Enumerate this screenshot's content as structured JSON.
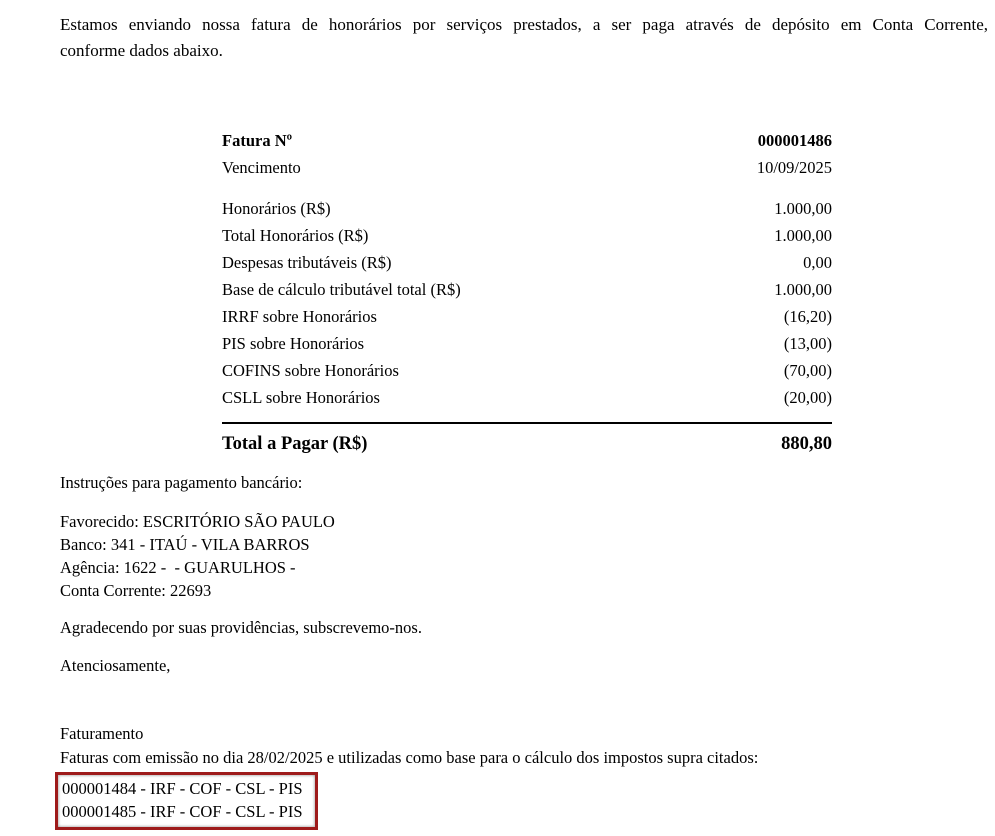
{
  "intro": {
    "line1": "Estamos enviando nossa fatura de honorários por serviços prestados, a ser paga através de depósito em Conta Corrente,",
    "line2": "conforme dados abaixo."
  },
  "invoice": {
    "number_label": "Fatura Nº",
    "number_value": "000001486",
    "due_label": "Vencimento",
    "due_value": "10/09/2025",
    "rows": [
      {
        "label": "Honorários (R$)",
        "value": "1.000,00"
      },
      {
        "label": "Total Honorários (R$)",
        "value": "1.000,00"
      },
      {
        "label": "Despesas tributáveis (R$)",
        "value": "0,00"
      },
      {
        "label": "Base de cálculo tributável total (R$)",
        "value": "1.000,00"
      },
      {
        "label": "IRRF sobre Honorários",
        "value": "(16,20)"
      },
      {
        "label": "PIS sobre Honorários",
        "value": "(13,00)"
      },
      {
        "label": "COFINS sobre Honorários",
        "value": "(70,00)"
      },
      {
        "label": "CSLL sobre Honorários",
        "value": "(20,00)"
      }
    ],
    "total_label": "Total a Pagar (R$)",
    "total_value": "880,80"
  },
  "payment": {
    "title": "Instruções para pagamento bancário:",
    "beneficiary": "Favorecido: ESCRITÓRIO SÃO PAULO",
    "bank": "Banco: 341 - ITAÚ - VILA BARROS",
    "agency": "Agência: 1622 -  - GUARULHOS -",
    "account": "Conta Corrente: 22693"
  },
  "closing": {
    "thanks": "Agradecendo por suas providências, subscrevemo-nos.",
    "regards": "Atenciosamente,"
  },
  "footer": {
    "department": "Faturamento",
    "note": "Faturas com emissão no dia 28/02/2025 e utilizadas como base para o cálculo dos impostos supra citados:",
    "highlighted_invoices": [
      "000001484 - IRF - COF - CSL - PIS",
      "000001485 - IRF - COF - CSL - PIS"
    ],
    "highlight_border_color": "#9e1b1b",
    "text_color": "#000000"
  }
}
